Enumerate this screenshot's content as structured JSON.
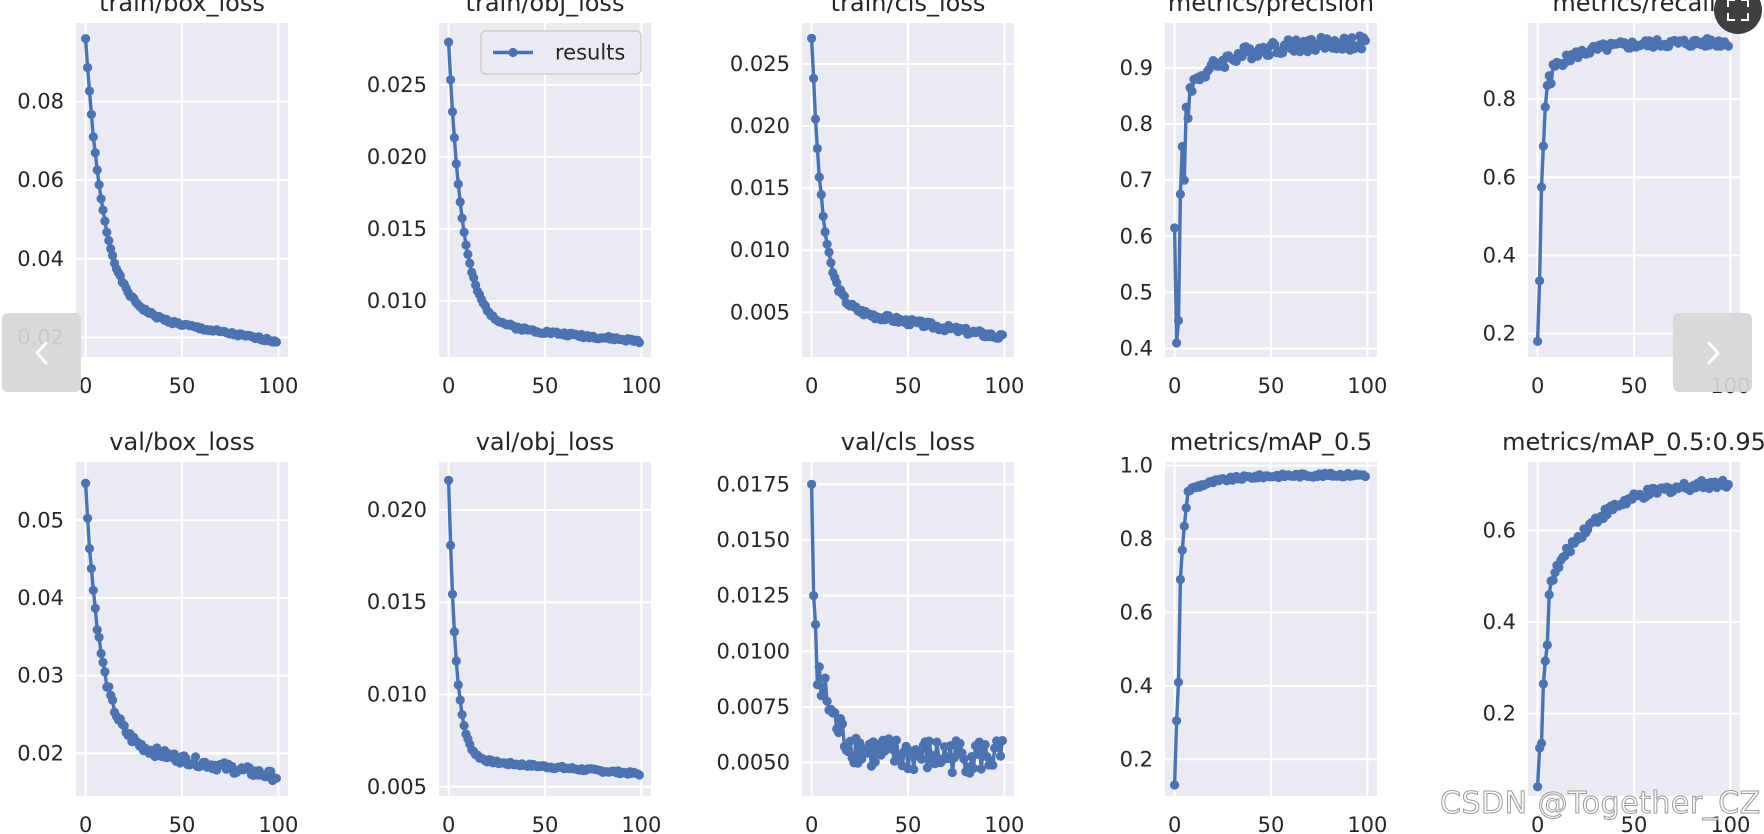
{
  "viewer": {
    "prev_label": "‹",
    "next_label": "›",
    "expand_icon": "expand-icon",
    "watermark": "CSDN @Together_CZ"
  },
  "colors": {
    "line": "#4c72b0",
    "plot_bg": "#eaeaf2",
    "grid": "#ffffff",
    "text": "#262626"
  },
  "chart_data": [
    {
      "type": "line",
      "title": "train/box_loss",
      "xlim": [
        -5,
        105
      ],
      "ylim": [
        0.015,
        0.1
      ],
      "xticks": [
        0,
        50,
        100
      ],
      "yticks": [
        0.02,
        0.04,
        0.06,
        0.08
      ],
      "ytick_labels": [
        "0.02",
        "0.04",
        "0.06",
        "0.08"
      ],
      "series": [
        {
          "name": "results",
          "curve": "decay",
          "start": 0.096,
          "end": 0.019,
          "k": 0.11,
          "tail": 0.016,
          "noise": 0.0004,
          "seed": 1
        }
      ]
    },
    {
      "type": "line",
      "title": "train/obj_loss",
      "xlim": [
        -5,
        105
      ],
      "ylim": [
        0.0061,
        0.0293
      ],
      "xticks": [
        0,
        50,
        100
      ],
      "yticks": [
        0.01,
        0.015,
        0.02,
        0.025
      ],
      "ytick_labels": [
        "0.010",
        "0.015",
        "0.020",
        "0.025"
      ],
      "legend": "results",
      "series": [
        {
          "name": "results",
          "curve": "decay",
          "start": 0.028,
          "end": 0.0072,
          "k": 0.14,
          "tail": 0.0025,
          "noise": 0.00012,
          "seed": 2
        }
      ]
    },
    {
      "type": "line",
      "title": "train/cls_loss",
      "xlim": [
        -5,
        105
      ],
      "ylim": [
        0.0014,
        0.0283
      ],
      "xticks": [
        0,
        50,
        100
      ],
      "yticks": [
        0.005,
        0.01,
        0.015,
        0.02,
        0.025
      ],
      "ytick_labels": [
        "0.005",
        "0.010",
        "0.015",
        "0.020",
        "0.025"
      ],
      "series": [
        {
          "name": "results",
          "curve": "decay",
          "start": 0.0272,
          "end": 0.003,
          "k": 0.18,
          "tail": 0.005,
          "noise": 0.00025,
          "seed": 3
        }
      ]
    },
    {
      "type": "line",
      "title": "metrics/precision",
      "xlim": [
        -5,
        105
      ],
      "ylim": [
        0.385,
        0.98
      ],
      "xticks": [
        0,
        50,
        100
      ],
      "yticks": [
        0.4,
        0.5,
        0.6,
        0.7,
        0.8,
        0.9
      ],
      "ytick_labels": [
        "0.4",
        "0.5",
        "0.6",
        "0.7",
        "0.8",
        "0.9"
      ],
      "series": [
        {
          "name": "results",
          "curve": "rise",
          "prefix": [
            0.615,
            0.41,
            0.45,
            0.675,
            0.76,
            0.7,
            0.83,
            0.81,
            0.865
          ],
          "start": 0.87,
          "end": 0.945,
          "k": 0.05,
          "noise": 0.013,
          "seed": 4
        }
      ]
    },
    {
      "type": "line",
      "title": "metrics/recall",
      "xlim": [
        -5,
        105
      ],
      "ylim": [
        0.14,
        0.995
      ],
      "xticks": [
        0,
        50,
        100
      ],
      "yticks": [
        0.2,
        0.4,
        0.6,
        0.8
      ],
      "ytick_labels": [
        "0.2",
        "0.4",
        "0.6",
        "0.8"
      ],
      "series": [
        {
          "name": "results",
          "curve": "rise",
          "prefix": [
            0.18,
            0.335,
            0.575,
            0.68,
            0.78,
            0.835,
            0.86,
            0.84
          ],
          "start": 0.88,
          "end": 0.945,
          "k": 0.06,
          "noise": 0.011,
          "seed": 5
        }
      ]
    },
    {
      "type": "line",
      "title": "val/box_loss",
      "xlim": [
        -5,
        105
      ],
      "ylim": [
        0.0145,
        0.0575
      ],
      "xticks": [
        0,
        50,
        100
      ],
      "yticks": [
        0.02,
        0.03,
        0.04,
        0.05
      ],
      "ytick_labels": [
        "0.02",
        "0.03",
        "0.04",
        "0.05"
      ],
      "series": [
        {
          "name": "results",
          "curve": "decay",
          "start": 0.0545,
          "end": 0.017,
          "k": 0.13,
          "tail": 0.009,
          "noise": 0.0006,
          "seed": 6
        }
      ]
    },
    {
      "type": "line",
      "title": "val/obj_loss",
      "xlim": [
        -5,
        105
      ],
      "ylim": [
        0.0045,
        0.0226
      ],
      "xticks": [
        0,
        50,
        100
      ],
      "yticks": [
        0.005,
        0.01,
        0.015,
        0.02
      ],
      "ytick_labels": [
        "0.005",
        "0.010",
        "0.015",
        "0.020"
      ],
      "series": [
        {
          "name": "results",
          "curve": "decay",
          "start": 0.0216,
          "end": 0.0057,
          "k": 0.26,
          "tail": 0.0016,
          "noise": 8e-05,
          "seed": 7
        }
      ]
    },
    {
      "type": "line",
      "title": "val/cls_loss",
      "xlim": [
        -5,
        105
      ],
      "ylim": [
        0.0035,
        0.0185
      ],
      "xticks": [
        0,
        50,
        100
      ],
      "yticks": [
        0.005,
        0.0075,
        0.01,
        0.0125,
        0.015,
        0.0175
      ],
      "ytick_labels": [
        "0.0050",
        "0.0075",
        "0.0100",
        "0.0125",
        "0.0150",
        "0.0175"
      ],
      "series": [
        {
          "name": "results",
          "curve": "decay",
          "prefix": [
            0.0175,
            0.0125,
            0.0112,
            0.0085,
            0.0093,
            0.008
          ],
          "start": 0.0085,
          "end": 0.0053,
          "k": 0.12,
          "tail": 0.0,
          "noise": 0.0008,
          "seed": 8
        }
      ]
    },
    {
      "type": "line",
      "title": "metrics/mAP_0.5",
      "xlim": [
        -5,
        105
      ],
      "ylim": [
        0.1,
        1.01
      ],
      "xticks": [
        0,
        50,
        100
      ],
      "yticks": [
        0.2,
        0.4,
        0.6,
        0.8,
        1.0
      ],
      "ytick_labels": [
        "0.2",
        "0.4",
        "0.6",
        "0.8",
        "1.0"
      ],
      "series": [
        {
          "name": "results",
          "curve": "rise",
          "prefix": [
            0.13,
            0.305,
            0.41,
            0.69,
            0.77,
            0.835,
            0.885,
            0.93
          ],
          "start": 0.935,
          "end": 0.975,
          "k": 0.06,
          "noise": 0.005,
          "seed": 9
        }
      ]
    },
    {
      "type": "line",
      "title": "metrics/mAP_0.5:0.95",
      "xlim": [
        -5,
        105
      ],
      "ylim": [
        0.02,
        0.75
      ],
      "xticks": [
        0,
        50,
        100
      ],
      "yticks": [
        0.2,
        0.4,
        0.6
      ],
      "ytick_labels": [
        "0.2",
        "0.4",
        "0.6"
      ],
      "series": [
        {
          "name": "results",
          "curve": "rise",
          "prefix": [
            0.04,
            0.125,
            0.135,
            0.265,
            0.315,
            0.35,
            0.46,
            0.49
          ],
          "start": 0.5,
          "end": 0.71,
          "k": 0.04,
          "noise": 0.01,
          "seed": 10
        }
      ]
    }
  ]
}
